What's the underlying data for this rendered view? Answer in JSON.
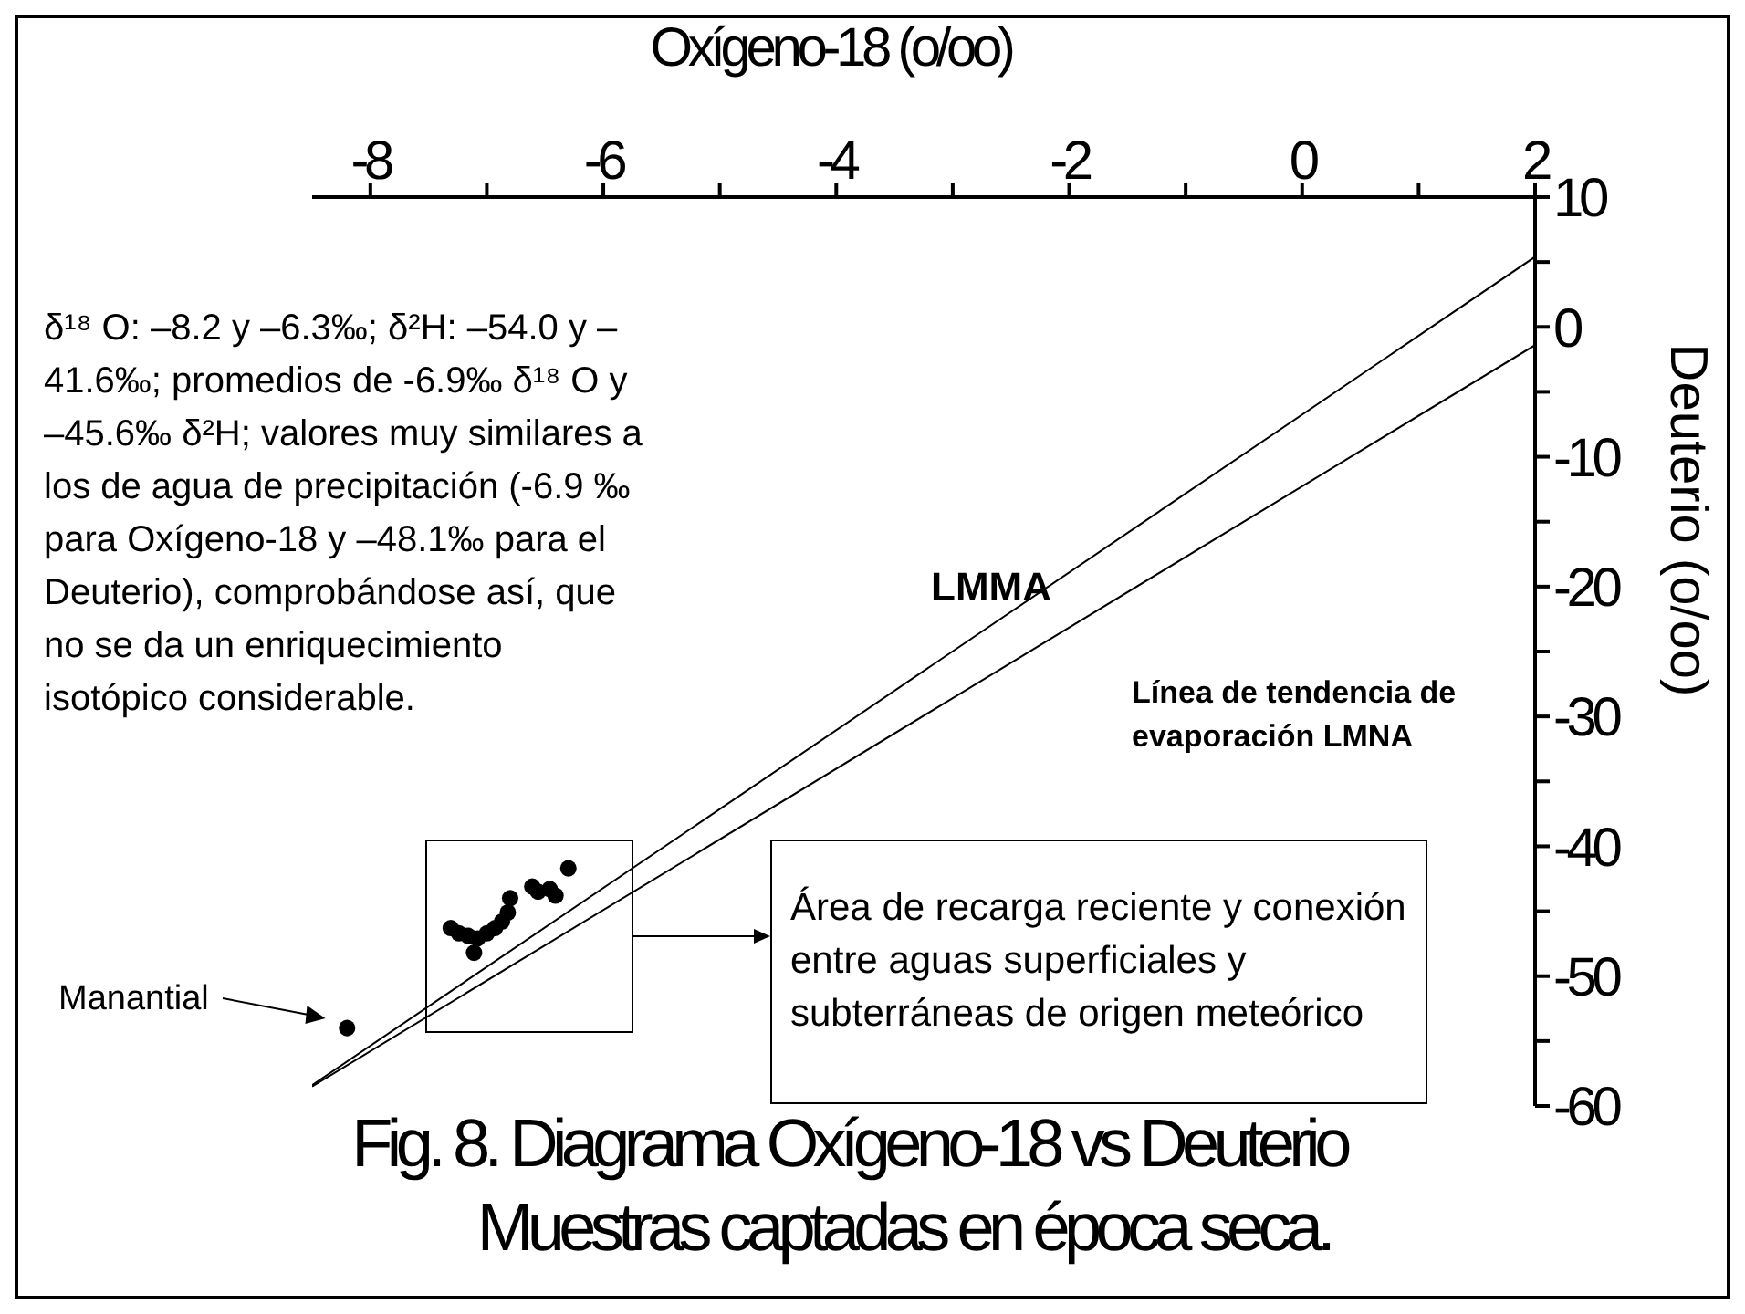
{
  "chart_data": {
    "type": "scatter",
    "title": "Fig. 8.  Diagrama Oxígeno-18 vs Deuterio",
    "subtitle": "Muestras captadas en época seca.",
    "xlabel": "Oxígeno-18 (o/oo)",
    "ylabel": "Deuterio (o/oo)",
    "xlim": [
      -8.5,
      2
    ],
    "ylim": [
      -60,
      10
    ],
    "xticks": [
      -8,
      {
        "value": -7,
        "label": null
      },
      -6,
      {
        "value": -5,
        "label": null
      },
      -4,
      {
        "value": -3,
        "label": null
      },
      -2,
      {
        "value": -1,
        "label": null
      },
      0,
      {
        "value": 1,
        "label": null
      },
      2
    ],
    "yticks": [
      -60,
      {
        "value": -55,
        "label": null
      },
      -50,
      {
        "value": -45,
        "label": null
      },
      -40,
      {
        "value": -35,
        "label": null
      },
      -30,
      {
        "value": -25,
        "label": null
      },
      -20,
      {
        "value": -15,
        "label": null
      },
      -10,
      {
        "value": -5,
        "label": null
      },
      0,
      {
        "value": 5,
        "label": null
      },
      10
    ],
    "grid": false,
    "marker": "circle",
    "series": [
      {
        "color": "#000000",
        "x": [
          -8.2,
          -7.31,
          -7.24,
          -7.16,
          -7.11,
          -7.08,
          -7.0,
          -6.93,
          -6.87,
          -6.82,
          -6.8,
          -6.61,
          -6.56,
          -6.46,
          -6.41,
          -6.3
        ],
        "values": [
          -54.0,
          -46.3,
          -46.7,
          -46.9,
          -48.2,
          -47.1,
          -46.7,
          -46.3,
          -45.8,
          -45.1,
          -44.0,
          -43.1,
          -43.5,
          -43.3,
          -43.8,
          -41.7
        ]
      },
      {
        "type": "line",
        "name": "LMMA",
        "color": "#000000",
        "marker": "none",
        "line_style": "solid",
        "x": [
          -8.5,
          2
        ],
        "values": [
          -58.4,
          5.4
        ]
      },
      {
        "type": "line",
        "name": "Línea de tendencia de evaporación LMNA",
        "color": "#000000",
        "marker": "none",
        "line_style": "solid",
        "x": [
          -8.5,
          2
        ],
        "values": [
          -58.5,
          -1.4
        ]
      }
    ],
    "annotations": [
      "δ¹⁸ O: –8.2 y –6.3‰; δ²H: –54.0 y –41.6‰;  promedios de -6.9‰  δ¹⁸ O y –45.6‰ δ²H; valores muy similares a los de agua de precipitación (-6.9 ‰ para Oxígeno-18 y –48.1‰ para el Deuterio), comprobándose así, que no se da un enriquecimiento isotópico considerable.",
      "Manantial",
      "Área de recarga reciente y conexión entre aguas superficiales y subterráneas de origen meteórico"
    ]
  }
}
